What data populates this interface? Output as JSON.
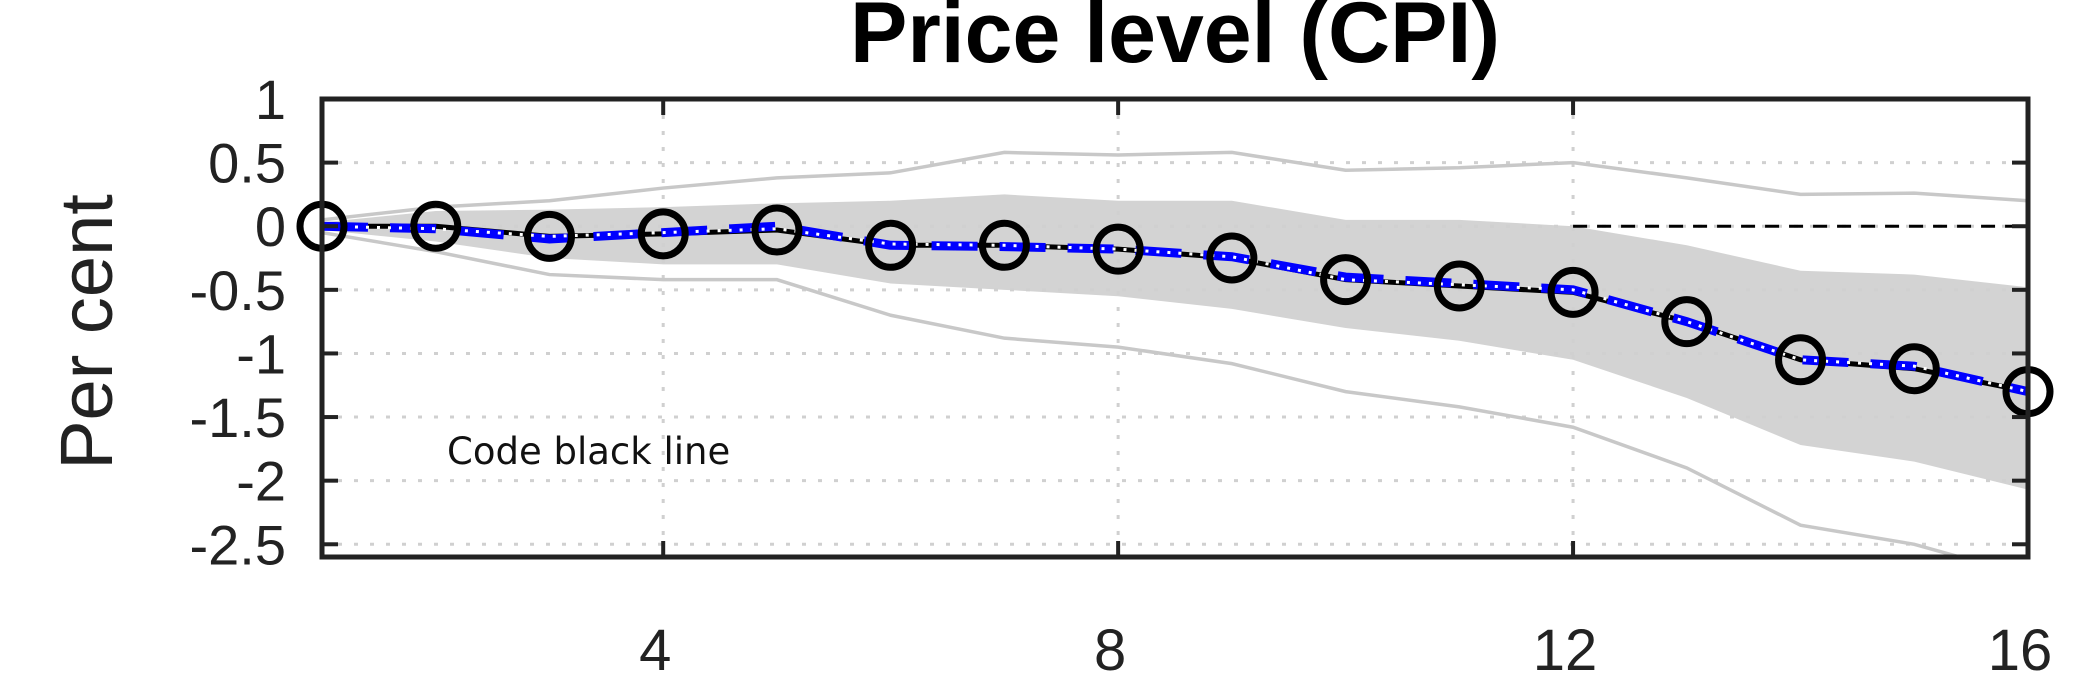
{
  "chart_data": {
    "type": "line",
    "title": "Price level (CPI)",
    "xlabel": "",
    "ylabel": "Per cent",
    "annotation": "Code black line",
    "xlim": [
      1,
      16
    ],
    "ylim": [
      -2.6,
      1
    ],
    "x_ticks": [
      4,
      8,
      12,
      16
    ],
    "y_ticks": [
      1,
      0.5,
      0,
      -0.5,
      -1,
      -1.5,
      -2,
      -2.5
    ],
    "x_tick_labels": [
      "4",
      "8",
      "12",
      "16"
    ],
    "y_tick_labels": [
      "1",
      "0.5",
      "0",
      "-0.5",
      "-1",
      "-1.5",
      "-2",
      "-2.5"
    ],
    "grid": "dotted",
    "x": [
      1,
      2,
      3,
      4,
      5,
      6,
      7,
      8,
      9,
      10,
      11,
      12,
      13,
      14,
      15,
      16
    ],
    "series": [
      {
        "role": "black line with circle markers",
        "color": "#000000",
        "values": [
          0.0,
          0.0,
          -0.08,
          -0.06,
          -0.03,
          -0.15,
          -0.15,
          -0.18,
          -0.25,
          -0.42,
          -0.47,
          -0.52,
          -0.75,
          -1.05,
          -1.12,
          -1.3
        ]
      },
      {
        "role": "blue dashed line",
        "color": "#0000ff",
        "values": [
          0.0,
          -0.02,
          -0.1,
          -0.05,
          0.0,
          -0.15,
          -0.16,
          -0.18,
          -0.24,
          -0.4,
          -0.45,
          -0.5,
          -0.75,
          -1.05,
          -1.1,
          -1.3
        ]
      },
      {
        "role": "white dotted line",
        "color": "#ffffff",
        "values": [
          0.0,
          -0.02,
          -0.08,
          -0.05,
          -0.02,
          -0.14,
          -0.15,
          -0.18,
          -0.24,
          -0.42,
          -0.46,
          -0.5,
          -0.75,
          -1.05,
          -1.1,
          -1.3
        ]
      }
    ],
    "band": {
      "color": "#d3d3d3",
      "upper": [
        0.03,
        0.12,
        0.13,
        0.15,
        0.18,
        0.2,
        0.25,
        0.2,
        0.2,
        0.05,
        0.05,
        0.0,
        -0.15,
        -0.35,
        -0.38,
        -0.48
      ],
      "lower": [
        -0.03,
        -0.12,
        -0.25,
        -0.3,
        -0.3,
        -0.45,
        -0.5,
        -0.55,
        -0.65,
        -0.8,
        -0.9,
        -1.05,
        -1.35,
        -1.72,
        -1.85,
        -2.07
      ]
    },
    "outer_lines": {
      "color": "#c8c8c8",
      "upper": [
        0.05,
        0.15,
        0.2,
        0.3,
        0.38,
        0.42,
        0.58,
        0.56,
        0.58,
        0.44,
        0.46,
        0.5,
        0.38,
        0.25,
        0.26,
        0.2
      ],
      "lower": [
        -0.05,
        -0.2,
        -0.38,
        -0.42,
        -0.42,
        -0.7,
        -0.88,
        -0.95,
        -1.08,
        -1.3,
        -1.42,
        -1.58,
        -1.9,
        -2.35,
        -2.5,
        -2.75
      ]
    },
    "reference_line": {
      "y": 0,
      "x_from": 12,
      "x_to": 16,
      "style": "dashed",
      "color": "#000000"
    }
  }
}
